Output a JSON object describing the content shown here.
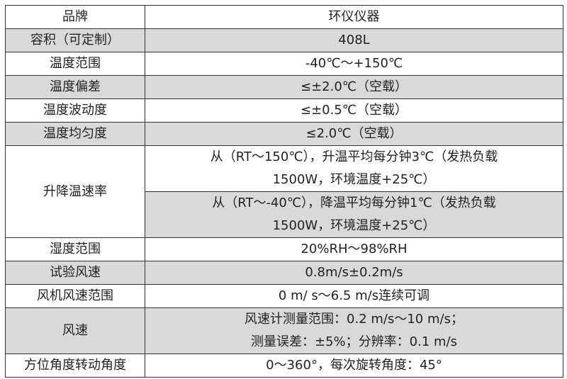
{
  "rows": [
    {
      "label": "品牌",
      "value": "环仪仪器"
    },
    {
      "label": "容积（可定制）",
      "value": "408L"
    },
    {
      "label": "温度范围",
      "value": "-40℃～+150℃"
    },
    {
      "label": "温度偏差",
      "value": "≤±2.0℃（空载）"
    },
    {
      "label": "温度波动度",
      "value": "≤±0.5℃（空载）"
    },
    {
      "label": "温度均匀度",
      "value": "≤2.0℃（空载）"
    },
    {
      "label": "升降温速率",
      "value_line1": "从（RT～150℃），升温平均每分钟3℃（发热负载",
      "value_line2": "1500W，环境温度+25℃）",
      "value2_line1": "从（RT～-40℃），降温平均每分钟1℃（发热负载",
      "value2_line2": "1500W，环境温度+25℃）"
    },
    {
      "label": "湿度范围",
      "value": "20%RH～98%RH"
    },
    {
      "label": "试验风速",
      "value": "0.8m/s±0.2m/s"
    },
    {
      "label": "风机风速范围",
      "value": "0 m/ s～6.5 m/s连续可调"
    },
    {
      "label": "风速",
      "value_line1": "风速计测量范围：0.2 m/s～10 m/s；",
      "value_line2": "测量误差：±5%；分辨率：0.1 m/s"
    },
    {
      "label": "方位角度转动角度",
      "value": "0～360°，每次旋转角度：45°"
    }
  ],
  "colors": {
    "shade": "#d9d9d9",
    "border": "#333333"
  }
}
